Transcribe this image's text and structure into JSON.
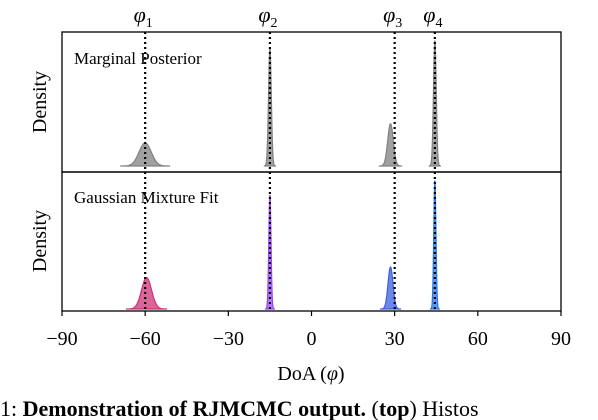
{
  "chart_data": [
    {
      "type": "area",
      "annotation": "Marginal Posterior",
      "ylabel": "Density",
      "xlim": [
        -90,
        90
      ],
      "series": [
        {
          "color": "#808080",
          "peaks": [
            {
              "center": -60,
              "width": 2.2,
              "height": 0.18
            },
            {
              "center": -15,
              "width": 0.5,
              "height": 0.92
            },
            {
              "center": 28.5,
              "width": 1.0,
              "height": 0.33
            },
            {
              "center": 44.5,
              "width": 0.5,
              "height": 0.98
            }
          ]
        }
      ]
    },
    {
      "type": "area",
      "annotation": "Gaussian Mixture Fit",
      "ylabel": "Density",
      "xlabel_prefix": "DoA (",
      "xlabel_symbol": "φ",
      "xlabel_suffix": ")",
      "xlim": [
        -90,
        90
      ],
      "xticks": [
        -90,
        -60,
        -30,
        0,
        30,
        60,
        90
      ],
      "xtick_labels": [
        "−90",
        "−60",
        "−30",
        "0",
        "30",
        "60",
        "90"
      ],
      "series": [
        {
          "color": "#cc3377",
          "peaks": [
            {
              "center": -59.5,
              "width": 1.8,
              "height": 0.24
            }
          ]
        },
        {
          "color": "#9b45f5",
          "peaks": [
            {
              "center": -15,
              "width": 0.4,
              "height": 0.87
            }
          ]
        },
        {
          "color": "#3b5fe0",
          "peaks": [
            {
              "center": 28.5,
              "width": 0.9,
              "height": 0.32
            }
          ]
        },
        {
          "color": "#2a78e8",
          "peaks": [
            {
              "center": 44.5,
              "width": 0.4,
              "height": 0.98
            }
          ]
        }
      ]
    }
  ],
  "reference_lines": [
    {
      "value": -60,
      "symbol": "φ",
      "subscript": "1"
    },
    {
      "value": -15,
      "symbol": "φ",
      "subscript": "2"
    },
    {
      "value": 30,
      "symbol": "φ",
      "subscript": "3"
    },
    {
      "value": 44.5,
      "symbol": "φ",
      "subscript": "4"
    }
  ],
  "caption": {
    "prefix": "1: ",
    "bold": "Demonstration of RJMCMC output.",
    "middle": " (",
    "bold2": "top",
    "suffix": ") Histos"
  }
}
